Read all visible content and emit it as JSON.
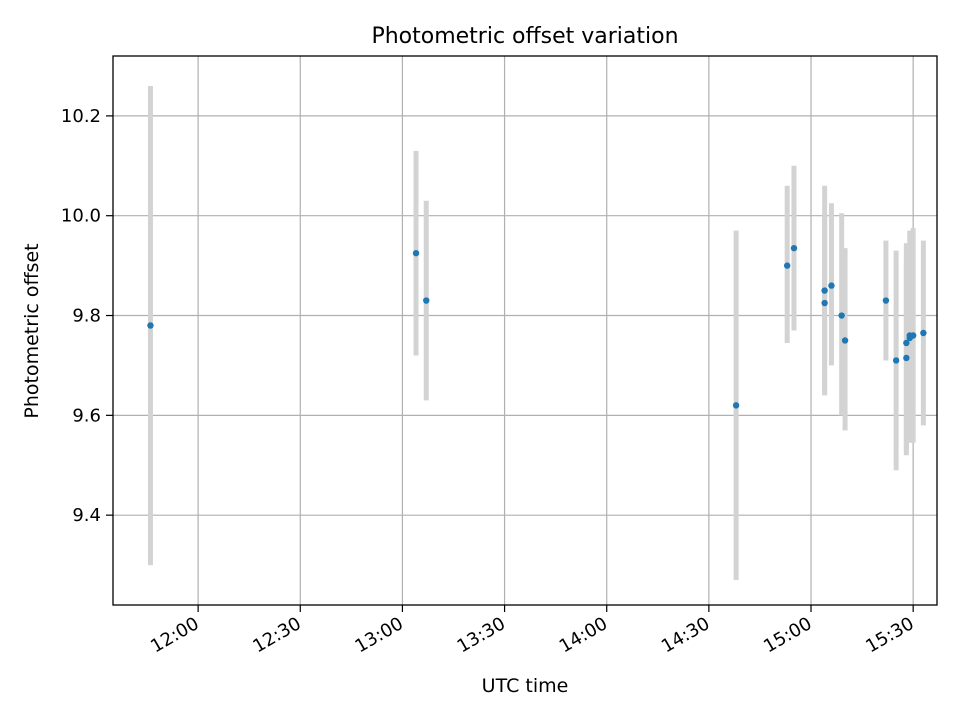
{
  "chart_data": {
    "type": "scatter",
    "title": "Photometric offset variation",
    "xlabel": "UTC time",
    "ylabel": "Photometric offset",
    "x_unit": "time (HH:MM)",
    "xlim": [
      "11:35",
      "15:37"
    ],
    "ylim": [
      9.22,
      10.32
    ],
    "x_ticks": [
      "12:00",
      "12:30",
      "13:00",
      "13:30",
      "14:00",
      "14:30",
      "15:00",
      "15:30"
    ],
    "y_ticks": [
      9.4,
      9.6,
      9.8,
      10.0,
      10.2
    ],
    "y_tick_labels": [
      "9.4",
      "9.6",
      "9.8",
      "10.0",
      "10.2"
    ],
    "grid": true,
    "colors": {
      "point": "#1f77b4",
      "errorbar": "#d3d3d3",
      "grid": "#b0b0b0"
    },
    "points": [
      {
        "x": "11:46",
        "y": 9.78,
        "lo": 9.3,
        "hi": 10.26
      },
      {
        "x": "13:04",
        "y": 9.925,
        "lo": 9.72,
        "hi": 10.13
      },
      {
        "x": "13:07",
        "y": 9.83,
        "lo": 9.63,
        "hi": 10.03
      },
      {
        "x": "14:38",
        "y": 9.62,
        "lo": 9.27,
        "hi": 9.97
      },
      {
        "x": "14:53",
        "y": 9.9,
        "lo": 9.745,
        "hi": 10.06
      },
      {
        "x": "14:55",
        "y": 9.935,
        "lo": 9.77,
        "hi": 10.1
      },
      {
        "x": "15:04",
        "y": 9.825,
        "lo": 9.64,
        "hi": 10.005
      },
      {
        "x": "15:04",
        "y": 9.85,
        "lo": 9.645,
        "hi": 10.06
      },
      {
        "x": "15:06",
        "y": 9.86,
        "lo": 9.7,
        "hi": 10.025
      },
      {
        "x": "15:09",
        "y": 9.8,
        "lo": 9.6,
        "hi": 10.005
      },
      {
        "x": "15:10",
        "y": 9.75,
        "lo": 9.57,
        "hi": 9.935
      },
      {
        "x": "15:22",
        "y": 9.83,
        "lo": 9.71,
        "hi": 9.95
      },
      {
        "x": "15:25",
        "y": 9.71,
        "lo": 9.49,
        "hi": 9.93
      },
      {
        "x": "15:28",
        "y": 9.715,
        "lo": 9.52,
        "hi": 9.905
      },
      {
        "x": "15:28",
        "y": 9.745,
        "lo": 9.53,
        "hi": 9.945
      },
      {
        "x": "15:29",
        "y": 9.755,
        "lo": 9.545,
        "hi": 9.945
      },
      {
        "x": "15:29",
        "y": 9.76,
        "lo": 9.56,
        "hi": 9.97
      },
      {
        "x": "15:30",
        "y": 9.76,
        "lo": 9.545,
        "hi": 9.975
      },
      {
        "x": "15:33",
        "y": 9.765,
        "lo": 9.58,
        "hi": 9.95
      }
    ]
  }
}
